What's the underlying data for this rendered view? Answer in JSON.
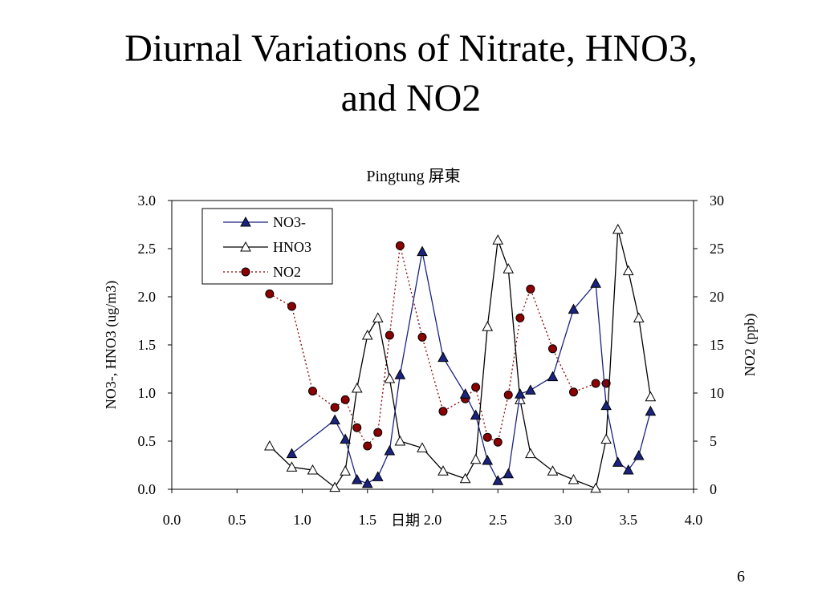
{
  "slide": {
    "title_line1": "Diurnal Variations of Nitrate, HNO3,",
    "title_line2": "and NO2",
    "page_number": "6"
  },
  "chart_data": {
    "type": "line",
    "title": "Pingtung 屏東",
    "xlabel": "日期",
    "ylabel": "NO3-, HNO3 (ug/m3)",
    "y2label": "NO2 (ppb)",
    "xlim": [
      0.0,
      4.0
    ],
    "ylim": [
      0.0,
      3.0
    ],
    "y2lim": [
      0,
      30
    ],
    "x_ticks": [
      "0.0",
      "0.5",
      "1.0",
      "1.5",
      "2.0",
      "2.5",
      "3.0",
      "3.5",
      "4.0"
    ],
    "y_ticks": [
      "0.0",
      "0.5",
      "1.0",
      "1.5",
      "2.0",
      "2.5",
      "3.0"
    ],
    "y2_ticks": [
      "0",
      "5",
      "10",
      "15",
      "20",
      "25",
      "30"
    ],
    "grid": false,
    "legend_position": "top-left",
    "series": [
      {
        "name": "NO3-",
        "axis": "left",
        "marker": "filled-triangle",
        "line": "solid",
        "color": "#1a237e",
        "x": [
          0.92,
          1.25,
          1.33,
          1.42,
          1.5,
          1.58,
          1.67,
          1.75,
          1.92,
          2.08,
          2.25,
          2.33,
          2.42,
          2.5,
          2.58,
          2.67,
          2.75,
          2.92,
          3.08,
          3.25,
          3.33,
          3.42,
          3.5,
          3.58,
          3.67
        ],
        "y": [
          0.37,
          0.72,
          0.52,
          0.1,
          0.06,
          0.13,
          0.4,
          1.19,
          2.47,
          1.37,
          0.99,
          0.77,
          0.3,
          0.09,
          0.16,
          0.99,
          1.03,
          1.17,
          1.87,
          2.14,
          0.87,
          0.28,
          0.2,
          0.35,
          0.81
        ]
      },
      {
        "name": "HNO3",
        "axis": "left",
        "marker": "open-triangle",
        "line": "solid",
        "color": "#000000",
        "x": [
          0.75,
          0.92,
          1.08,
          1.25,
          1.33,
          1.42,
          1.5,
          1.58,
          1.67,
          1.75,
          1.92,
          2.08,
          2.25,
          2.33,
          2.42,
          2.5,
          2.58,
          2.67,
          2.75,
          2.92,
          3.08,
          3.25,
          3.33,
          3.42,
          3.5,
          3.58,
          3.67
        ],
        "y": [
          0.45,
          0.23,
          0.2,
          0.02,
          0.19,
          1.05,
          1.6,
          1.78,
          1.15,
          0.5,
          0.43,
          0.19,
          0.11,
          0.31,
          1.69,
          2.59,
          2.29,
          0.93,
          0.37,
          0.19,
          0.1,
          0.01,
          0.52,
          2.7,
          2.27,
          1.78,
          0.96
        ]
      },
      {
        "name": "NO2",
        "axis": "right",
        "marker": "filled-circle",
        "line": "dotted",
        "color": "#8b0000",
        "x": [
          0.75,
          0.92,
          1.08,
          1.25,
          1.33,
          1.42,
          1.5,
          1.58,
          1.67,
          1.75,
          1.92,
          2.08,
          2.25,
          2.33,
          2.42,
          2.5,
          2.58,
          2.67,
          2.75,
          2.92,
          3.08,
          3.25,
          3.33
        ],
        "y": [
          20.3,
          19.0,
          10.2,
          8.5,
          9.3,
          6.4,
          4.5,
          5.9,
          16.0,
          25.3,
          15.8,
          8.1,
          9.4,
          10.6,
          5.4,
          4.9,
          9.8,
          17.8,
          20.8,
          14.6,
          10.1,
          11.0,
          11.0
        ]
      }
    ]
  }
}
